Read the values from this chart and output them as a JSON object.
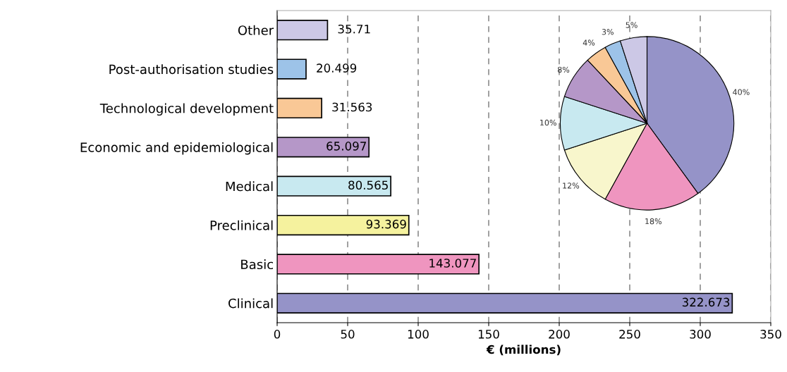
{
  "chart_data": [
    {
      "type": "bar",
      "orientation": "horizontal",
      "xlabel": "€ (millions)",
      "categories": [
        "Other",
        "Post-authorisation studies",
        "Technological development",
        "Economic and epidemiological",
        "Medical",
        "Preclinical",
        "Basic",
        "Clinical"
      ],
      "values": [
        35.71,
        20.499,
        31.563,
        65.097,
        80.565,
        93.369,
        143.077,
        322.673
      ],
      "colors": [
        "#ccc8e6",
        "#9dc3e8",
        "#f9c896",
        "#b597c8",
        "#c8e9f0",
        "#f5f29e",
        "#ef95bf",
        "#9593c8"
      ],
      "xlim": [
        0,
        350
      ],
      "xticks": [
        0,
        50,
        100,
        150,
        200,
        250,
        300,
        350
      ],
      "grid": "x",
      "data_labels": true
    },
    {
      "type": "pie",
      "categories": [
        null,
        null,
        null,
        null,
        null,
        null,
        null,
        null
      ],
      "values": [
        40,
        18,
        12,
        10,
        8,
        4,
        3,
        5
      ],
      "value_labels": [
        "40%",
        "18%",
        "12%",
        "10%",
        "8%",
        "4%",
        "3%",
        "5%"
      ],
      "colors": [
        "#9593c8",
        "#ef95bf",
        "#f8f6cc",
        "#c8e9f0",
        "#b597c8",
        "#f9c896",
        "#9dc3e8",
        "#ccc8e6"
      ]
    }
  ]
}
